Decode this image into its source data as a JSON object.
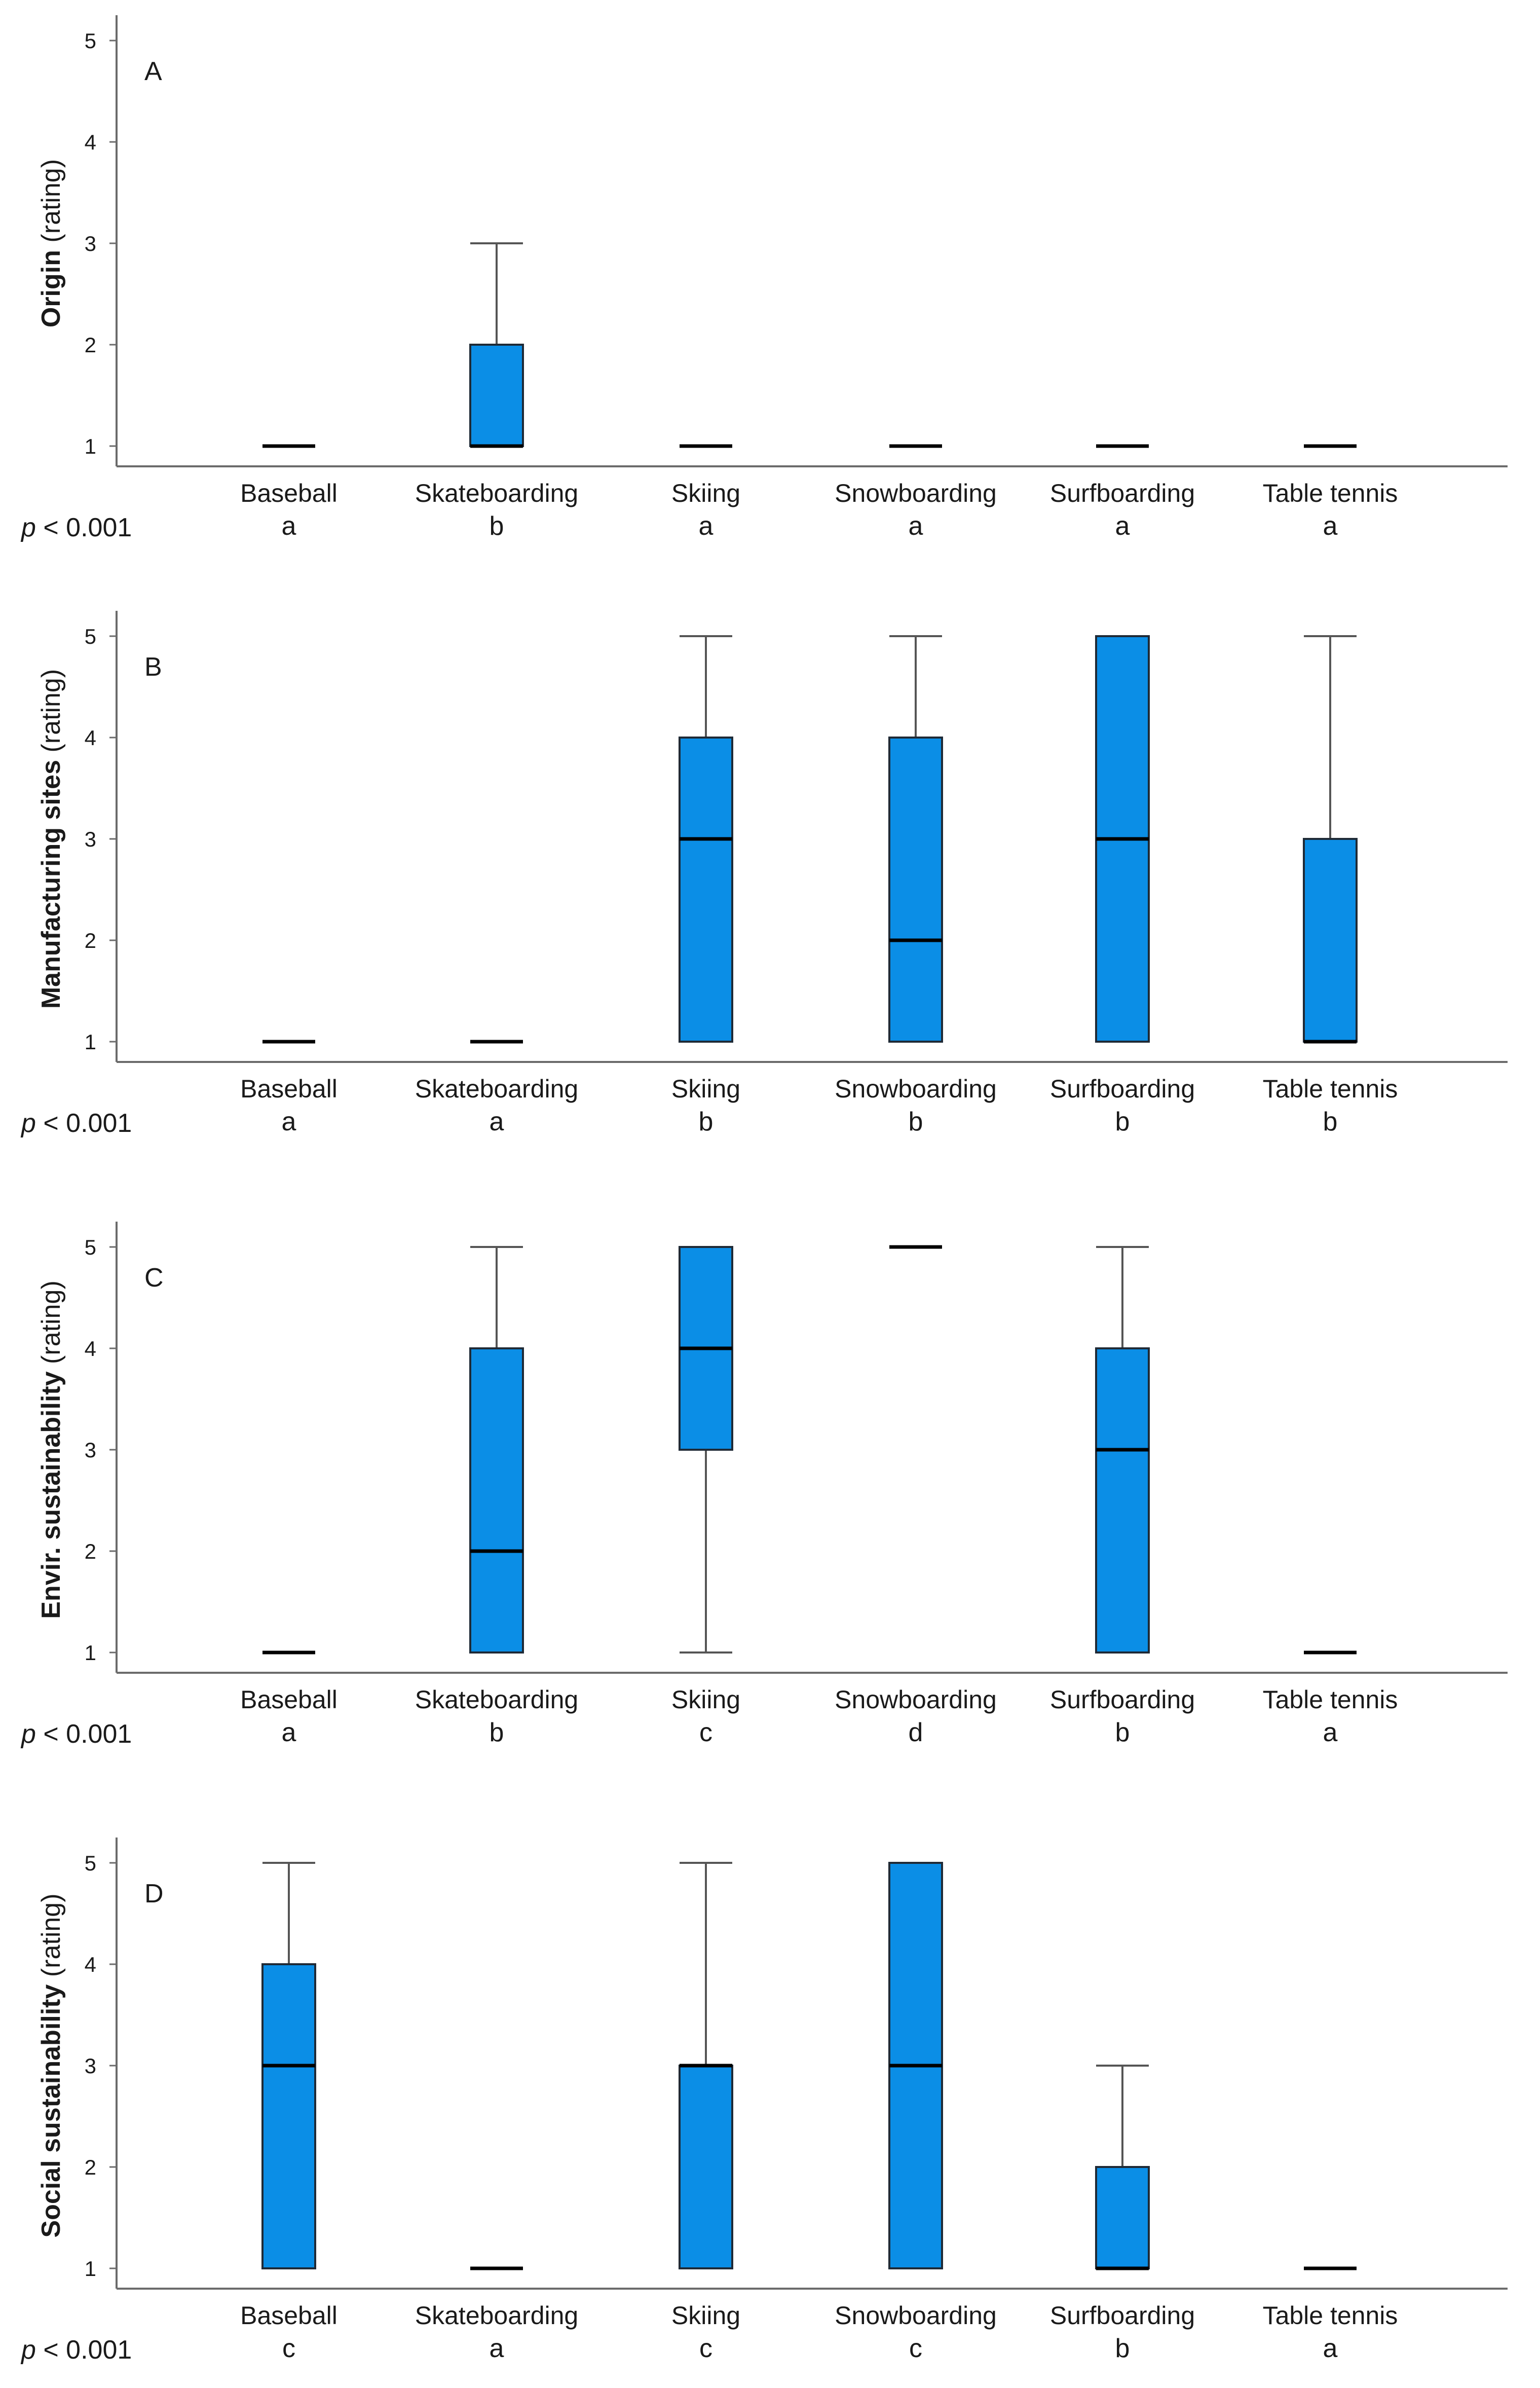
{
  "chart_data": [
    {
      "type": "box",
      "panel_label": "A",
      "ylabel_bold": "Origin",
      "ylabel_rest": "(rating)",
      "yticks": [
        "1",
        "2",
        "3",
        "4",
        "5"
      ],
      "ylim": [
        1,
        5
      ],
      "categories": [
        "Baseball",
        "Skateboarding",
        "Skiing",
        "Snowboarding",
        "Surfboarding",
        "Table tennis"
      ],
      "boxes": [
        {
          "q1": 1,
          "median": 1,
          "q3": 1,
          "whisker_low": 1,
          "whisker_high": 1
        },
        {
          "q1": 1,
          "median": 1,
          "q3": 2,
          "whisker_low": 1,
          "whisker_high": 3
        },
        {
          "q1": 1,
          "median": 1,
          "q3": 1,
          "whisker_low": 1,
          "whisker_high": 1
        },
        {
          "q1": 1,
          "median": 1,
          "q3": 1,
          "whisker_low": 1,
          "whisker_high": 1
        },
        {
          "q1": 1,
          "median": 1,
          "q3": 1,
          "whisker_low": 1,
          "whisker_high": 1
        },
        {
          "q1": 1,
          "median": 1,
          "q3": 1,
          "whisker_low": 1,
          "whisker_high": 1
        }
      ],
      "p_italic": "p",
      "p_rest": " < 0.001",
      "group_letters": [
        "a",
        "b",
        "a",
        "a",
        "a",
        "a"
      ]
    },
    {
      "type": "box",
      "panel_label": "B",
      "ylabel_bold": "Manufacturing  sites",
      "ylabel_rest": "(rating)",
      "yticks": [
        "1",
        "2",
        "3",
        "4",
        "5"
      ],
      "ylim": [
        1,
        5
      ],
      "categories": [
        "Baseball",
        "Skateboarding",
        "Skiing",
        "Snowboarding",
        "Surfboarding",
        "Table tennis"
      ],
      "boxes": [
        {
          "q1": 1,
          "median": 1,
          "q3": 1,
          "whisker_low": 1,
          "whisker_high": 1
        },
        {
          "q1": 1,
          "median": 1,
          "q3": 1,
          "whisker_low": 1,
          "whisker_high": 1
        },
        {
          "q1": 1,
          "median": 3,
          "q3": 4,
          "whisker_low": 1,
          "whisker_high": 5
        },
        {
          "q1": 1,
          "median": 2,
          "q3": 4,
          "whisker_low": 1,
          "whisker_high": 5
        },
        {
          "q1": 1,
          "median": 3,
          "q3": 5,
          "whisker_low": 1,
          "whisker_high": 5
        },
        {
          "q1": 1,
          "median": 1,
          "q3": 3,
          "whisker_low": 1,
          "whisker_high": 5
        }
      ],
      "p_italic": "p",
      "p_rest": " < 0.001",
      "group_letters": [
        "a",
        "a",
        "b",
        "b",
        "b",
        "b"
      ]
    },
    {
      "type": "box",
      "panel_label": "C",
      "ylabel_bold": "Envir. sustainability",
      "ylabel_rest": "(rating)",
      "yticks": [
        "1",
        "2",
        "3",
        "4",
        "5"
      ],
      "ylim": [
        1,
        5
      ],
      "categories": [
        "Baseball",
        "Skateboarding",
        "Skiing",
        "Snowboarding",
        "Surfboarding",
        "Table tennis"
      ],
      "boxes": [
        {
          "q1": 1,
          "median": 1,
          "q3": 1,
          "whisker_low": 1,
          "whisker_high": 1
        },
        {
          "q1": 1,
          "median": 2,
          "q3": 4,
          "whisker_low": 1,
          "whisker_high": 5
        },
        {
          "q1": 3,
          "median": 4,
          "q3": 5,
          "whisker_low": 1,
          "whisker_high": 5
        },
        {
          "q1": 5,
          "median": 5,
          "q3": 5,
          "whisker_low": 5,
          "whisker_high": 5
        },
        {
          "q1": 1,
          "median": 3,
          "q3": 4,
          "whisker_low": 1,
          "whisker_high": 5
        },
        {
          "q1": 1,
          "median": 1,
          "q3": 1,
          "whisker_low": 1,
          "whisker_high": 1
        }
      ],
      "p_italic": "p",
      "p_rest": " < 0.001",
      "group_letters": [
        "a",
        "b",
        "c",
        "d",
        "b",
        "a"
      ]
    },
    {
      "type": "box",
      "panel_label": "D",
      "ylabel_bold": "Social sustainability",
      "ylabel_rest": "(rating)",
      "yticks": [
        "1",
        "2",
        "3",
        "4",
        "5"
      ],
      "ylim": [
        1,
        5
      ],
      "categories": [
        "Baseball",
        "Skateboarding",
        "Skiing",
        "Snowboarding",
        "Surfboarding",
        "Table tennis"
      ],
      "boxes": [
        {
          "q1": 1,
          "median": 3,
          "q3": 4,
          "whisker_low": 1,
          "whisker_high": 5
        },
        {
          "q1": 1,
          "median": 1,
          "q3": 1,
          "whisker_low": 1,
          "whisker_high": 1
        },
        {
          "q1": 1,
          "median": 3,
          "q3": 3,
          "whisker_low": 1,
          "whisker_high": 5
        },
        {
          "q1": 1,
          "median": 3,
          "q3": 5,
          "whisker_low": 1,
          "whisker_high": 5
        },
        {
          "q1": 1,
          "median": 1,
          "q3": 2,
          "whisker_low": 1,
          "whisker_high": 3
        },
        {
          "q1": 1,
          "median": 1,
          "q3": 1,
          "whisker_low": 1,
          "whisker_high": 1
        }
      ],
      "p_italic": "p",
      "p_rest": " < 0.001",
      "group_letters": [
        "c",
        "a",
        "c",
        "c",
        "b",
        "a"
      ]
    }
  ],
  "colors": {
    "box_fill": "#0b8ee6",
    "box_stroke": "#1f2a36",
    "median": "#000000",
    "whisker": "#555555",
    "axis": "#6b6b6b",
    "text": "#1a1a1a"
  }
}
